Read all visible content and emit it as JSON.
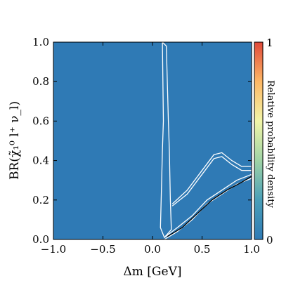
{
  "chart_data": {
    "type": "heatmap",
    "xlabel": "Δm [GeV]",
    "ylabel": "BR(χ̃₁⁰ l⁺ ν_l)",
    "xlim": [
      -1.0,
      1.0
    ],
    "ylim": [
      0.0,
      1.0
    ],
    "x_ticks": [
      "−1.0",
      "−0.5",
      "0.0",
      "0.5",
      "1.0"
    ],
    "y_ticks": [
      "0.0",
      "0.2",
      "0.4",
      "0.6",
      "0.8",
      "1.0"
    ],
    "grid": false,
    "background_color": "#2f7ab5",
    "colormap": [
      "#2f7ab5",
      "#4a9fb8",
      "#9fd3a5",
      "#f2f5a8",
      "#fdb765",
      "#e0493a"
    ],
    "colorbar": {
      "label": "Relative probability density",
      "min_label": "0",
      "max_label": "1",
      "position": "right"
    },
    "contours": [
      {
        "name": "vertical-ridge-outer",
        "color": "#ffffff",
        "points": [
          [
            0.1,
            1.0
          ],
          [
            0.14,
            0.98
          ],
          [
            0.16,
            0.6
          ],
          [
            0.17,
            0.45
          ],
          [
            0.18,
            0.2
          ],
          [
            0.19,
            0.05
          ],
          [
            0.12,
            0.01
          ],
          [
            0.08,
            0.06
          ],
          [
            0.09,
            0.25
          ],
          [
            0.1,
            0.45
          ],
          [
            0.11,
            0.6
          ],
          [
            0.1,
            1.0
          ]
        ]
      },
      {
        "name": "upper-band-outer",
        "color": "#ffffff",
        "points": [
          [
            0.2,
            0.18
          ],
          [
            0.35,
            0.25
          ],
          [
            0.5,
            0.35
          ],
          [
            0.62,
            0.43
          ],
          [
            0.7,
            0.44
          ],
          [
            0.8,
            0.4
          ],
          [
            0.9,
            0.37
          ],
          [
            1.0,
            0.37
          ],
          [
            1.0,
            0.35
          ],
          [
            0.9,
            0.35
          ],
          [
            0.8,
            0.38
          ],
          [
            0.7,
            0.42
          ],
          [
            0.62,
            0.41
          ],
          [
            0.5,
            0.33
          ],
          [
            0.35,
            0.23
          ],
          [
            0.2,
            0.17
          ]
        ]
      },
      {
        "name": "lower-band-outer",
        "color": "#ffffff",
        "points": [
          [
            0.12,
            0.01
          ],
          [
            0.25,
            0.06
          ],
          [
            0.4,
            0.12
          ],
          [
            0.55,
            0.2
          ],
          [
            0.7,
            0.25
          ],
          [
            0.85,
            0.3
          ],
          [
            1.0,
            0.33
          ],
          [
            1.0,
            0.31
          ],
          [
            0.85,
            0.28
          ],
          [
            0.7,
            0.23
          ],
          [
            0.55,
            0.18
          ],
          [
            0.4,
            0.1
          ],
          [
            0.25,
            0.04
          ],
          [
            0.12,
            0.0
          ]
        ]
      },
      {
        "name": "lower-band-core",
        "color": "#000000",
        "points": [
          [
            0.15,
            0.015
          ],
          [
            0.3,
            0.06
          ],
          [
            0.45,
            0.13
          ],
          [
            0.6,
            0.2
          ],
          [
            0.75,
            0.25
          ],
          [
            0.9,
            0.29
          ],
          [
            1.0,
            0.32
          ]
        ]
      }
    ]
  }
}
